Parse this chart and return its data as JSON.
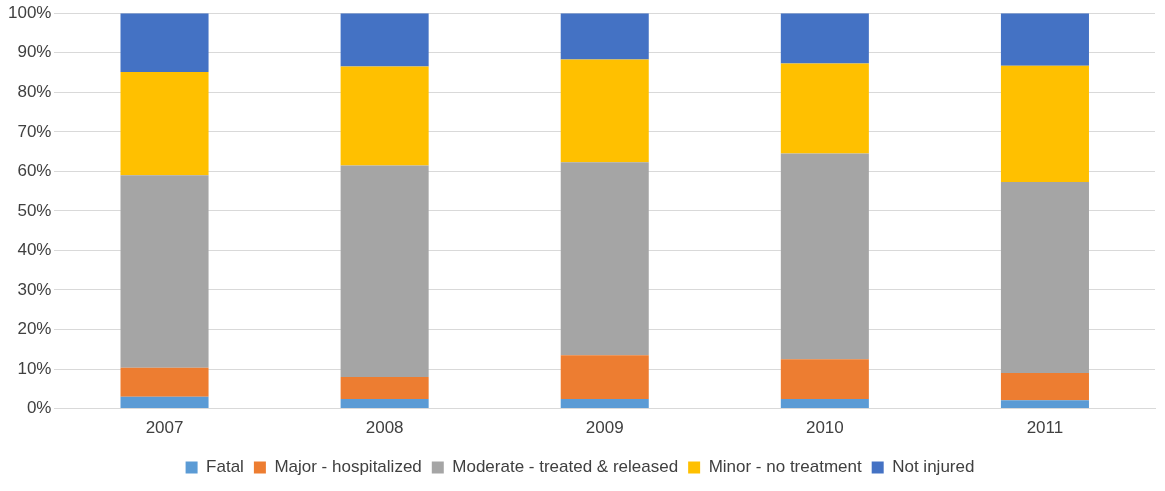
{
  "chart_data": {
    "type": "bar",
    "stacked": true,
    "categories": [
      "2007",
      "2008",
      "2009",
      "2010",
      "2011"
    ],
    "series": [
      {
        "name": "Fatal",
        "color": "#5b9bd5",
        "values": [
          3,
          2.4,
          2.4,
          2.4,
          2.1
        ]
      },
      {
        "name": "Major - hospitalized",
        "color": "#ed7d31",
        "values": [
          7.3,
          5.6,
          11.1,
          10.1,
          6.9
        ]
      },
      {
        "name": "Moderate - treated & released",
        "color": "#a5a5a5",
        "values": [
          48.7,
          53.5,
          48.8,
          52,
          48.3
        ]
      },
      {
        "name": "Minor - no treatment",
        "color": "#ffc000",
        "values": [
          26.1,
          25,
          26,
          22.8,
          29.4
        ]
      },
      {
        "name": "Not injured",
        "color": "#4472c4",
        "values": [
          14.9,
          13.5,
          11.7,
          12.7,
          13.3
        ]
      }
    ],
    "ylim": [
      0,
      100
    ],
    "yticks": [
      {
        "value": 0,
        "label": "0%"
      },
      {
        "value": 10,
        "label": "10%"
      },
      {
        "value": 20,
        "label": "20%"
      },
      {
        "value": 30,
        "label": "30%"
      },
      {
        "value": 40,
        "label": "40%"
      },
      {
        "value": 50,
        "label": "50%"
      },
      {
        "value": 60,
        "label": "60%"
      },
      {
        "value": 70,
        "label": "70%"
      },
      {
        "value": 80,
        "label": "80%"
      },
      {
        "value": 90,
        "label": "90%"
      },
      {
        "value": 100,
        "label": "100%"
      }
    ],
    "grid": "y",
    "legend": "bottom"
  }
}
